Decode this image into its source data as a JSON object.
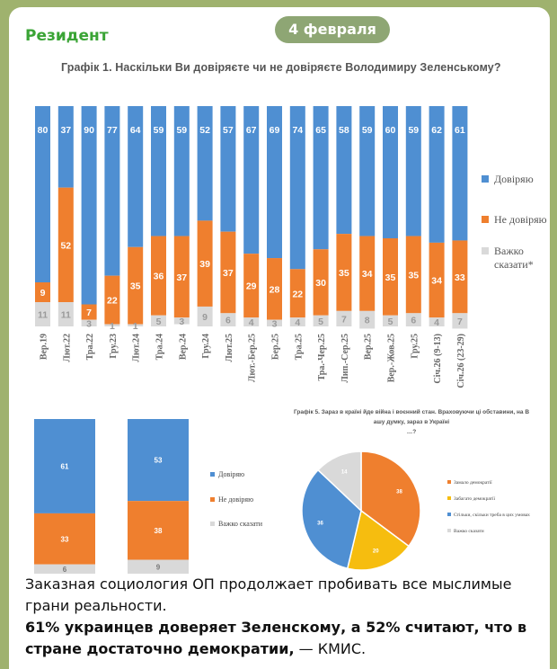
{
  "message": {
    "sender": "Резидент",
    "date": "4 февраля",
    "text_line": "Заказная социология ОП продолжает пробивать все мыслимые грани реальности.",
    "text_bold": "61% украинцев доверяет Зеленскому, а 52% считают, что в стране достаточно демократии,",
    "text_tail": " — КМИС."
  },
  "colors": {
    "trust": "#4f8fd2",
    "distrust": "#ef7f2e",
    "unsure": "#d9d9d9",
    "yellow": "#f6bd0f"
  },
  "chart_data": [
    {
      "type": "bar",
      "stacked": "percent",
      "title": "Графік 1. Наскільки Ви довіряєте чи не довіряєте Володимиру Зеленському?",
      "categories": [
        "Вер.19",
        "Лют.22",
        "Тра.22",
        "Гру.23",
        "Лют.24",
        "Тра.24",
        "Вер.24",
        "Гру.24",
        "Лют.25",
        "Лют.-Бер.25",
        "Бер.25",
        "Тра.25",
        "Тра.-Чер.25",
        "Лип.-Сер.25",
        "Вер.25",
        "Вер.-Жов.25",
        "Гру.25",
        "Січ.26 (9-13)",
        "Січ.26 (23-29)"
      ],
      "series": [
        {
          "name": "Довіряю",
          "values": [
            80,
            37,
            90,
            77,
            64,
            59,
            59,
            52,
            57,
            67,
            69,
            74,
            65,
            58,
            59,
            60,
            59,
            62,
            61
          ]
        },
        {
          "name": "Не довіряю",
          "values": [
            9,
            52,
            7,
            22,
            35,
            36,
            37,
            39,
            37,
            29,
            28,
            22,
            30,
            35,
            34,
            35,
            35,
            34,
            33
          ]
        },
        {
          "name": "Важко сказати*",
          "values": [
            11,
            11,
            3,
            1,
            1,
            5,
            3,
            9,
            6,
            4,
            3,
            4,
            5,
            7,
            8,
            5,
            6,
            4,
            7
          ]
        }
      ],
      "legend_position": "right"
    },
    {
      "type": "bar",
      "stacked": "percent",
      "categories": [
        "",
        ""
      ],
      "series": [
        {
          "name": "Довіряю",
          "values": [
            61,
            53
          ]
        },
        {
          "name": "Не довіряю",
          "values": [
            33,
            38
          ]
        },
        {
          "name": "Важко сказати",
          "values": [
            6,
            9
          ]
        }
      ],
      "legend_position": "right"
    },
    {
      "type": "pie",
      "title": "Графік 5. Зараз в країні йде війна і воєнний стан. Враховуючи ці обставини, на Вашу думку, зараз в Україні…?",
      "labels": [
        "Замало демократії",
        "Забагато демократії",
        "Стільки, скільки треба в цих умовах",
        "Важко сказати"
      ],
      "values": [
        38,
        20,
        36,
        14
      ],
      "legend_position": "right"
    }
  ]
}
